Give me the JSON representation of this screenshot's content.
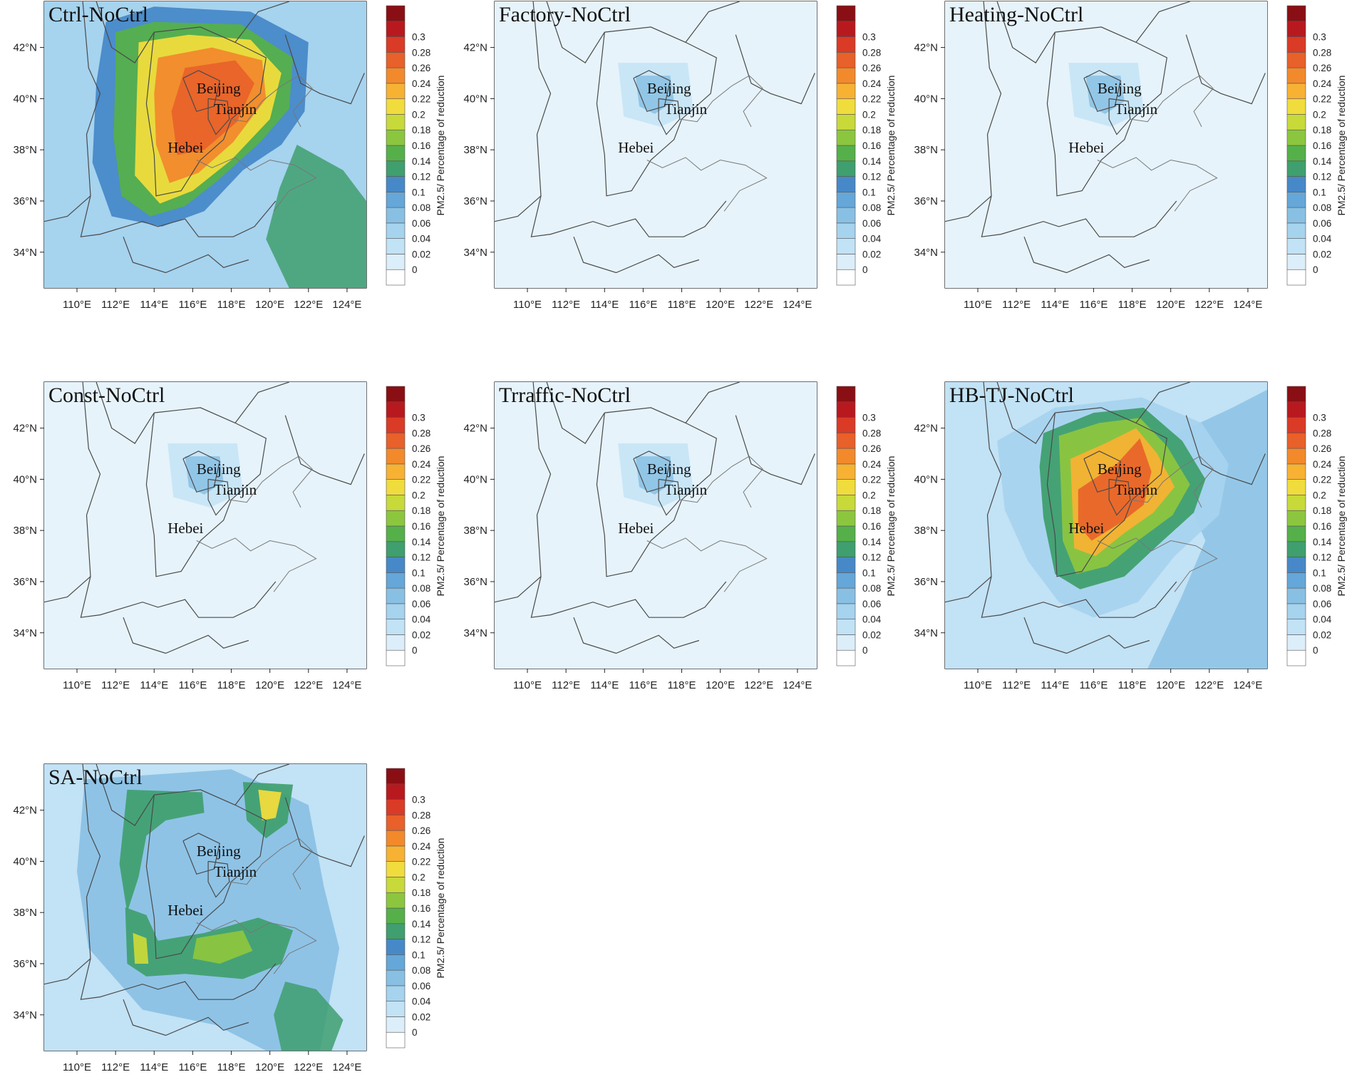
{
  "figure": {
    "colorbar": {
      "title": "PM2.5/ Percentage of reduction",
      "levels": [
        "0",
        "0.02",
        "0.04",
        "0.06",
        "0.08",
        "0.1",
        "0.12",
        "0.14",
        "0.16",
        "0.18",
        "0.2",
        "0.22",
        "0.24",
        "0.26",
        "0.28",
        "0.3"
      ],
      "colors": [
        "#ffffff",
        "#dceefa",
        "#c2e2f5",
        "#a6d3ee",
        "#88c0e4",
        "#65a7d8",
        "#4789c8",
        "#3f9f6e",
        "#55b04a",
        "#8cc63f",
        "#c8d93a",
        "#f0dc3c",
        "#f7b233",
        "#f28a2c",
        "#e8602a",
        "#d93b26",
        "#b8191e",
        "#8a0f14"
      ]
    },
    "longitude_labels": [
      "110°E",
      "112°E",
      "114°E",
      "116°E",
      "118°E",
      "120°E",
      "122°E",
      "124°E"
    ],
    "latitude_labels": [
      "34°N",
      "36°N",
      "38°N",
      "40°N",
      "42°N"
    ],
    "city_labels": {
      "beijing": "Beijing",
      "tianjin": "Tianjin",
      "hebei": "Hebei"
    },
    "panels": [
      {
        "title": "Ctrl-NoCtrl",
        "intensity": "very high",
        "pattern": "regional"
      },
      {
        "title": "Factory-NoCtrl",
        "intensity": "low",
        "pattern": "local"
      },
      {
        "title": "Heating-NoCtrl",
        "intensity": "low",
        "pattern": "local"
      },
      {
        "title": "Const-NoCtrl",
        "intensity": "low",
        "pattern": "local"
      },
      {
        "title": "Trraffic-NoCtrl",
        "intensity": "low",
        "pattern": "local"
      },
      {
        "title": "HB-TJ-NoCtrl",
        "intensity": "high",
        "pattern": "hebei-tianjin"
      },
      {
        "title": "SA-NoCtrl",
        "intensity": "moderate",
        "pattern": "surrounding"
      }
    ]
  }
}
